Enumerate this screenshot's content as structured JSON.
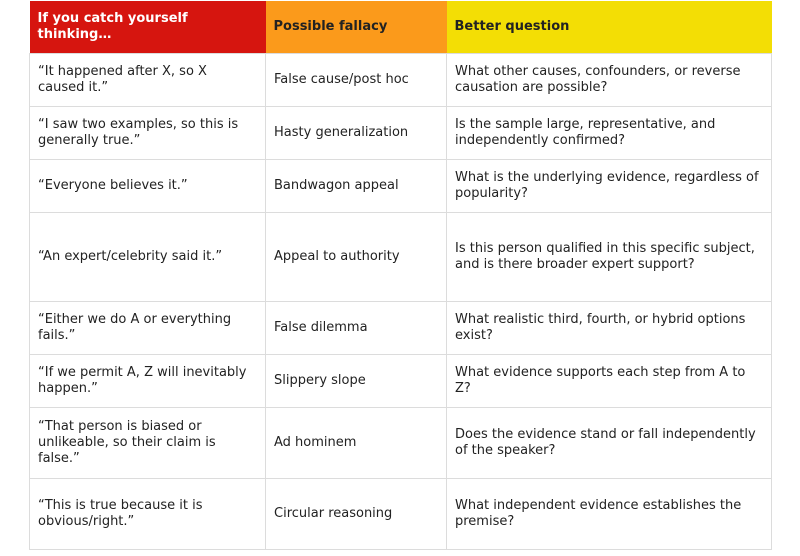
{
  "colors": {
    "header_col1": "#d6150f",
    "header_col2": "#fb9a1b",
    "header_col3": "#f3de05",
    "border": "#dcdcdc",
    "text": "#222222"
  },
  "table": {
    "headers": [
      "If you catch yourself thinking…",
      "Possible fallacy",
      "Better question"
    ],
    "rows": [
      {
        "thought": "“It happened after X, so X caused it.”",
        "fallacy": "False cause/post hoc",
        "question": "What other causes, confounders, or reverse causation are possible?"
      },
      {
        "thought": "“I saw two examples, so this is generally true.”",
        "fallacy": "Hasty generalization",
        "question": "Is the sample large, representative, and independently confirmed?"
      },
      {
        "thought": "“Everyone believes it.”",
        "fallacy": "Bandwagon appeal",
        "question": "What is the underlying evidence, regardless of popularity?"
      },
      {
        "thought": "“An expert/celebrity said it.”",
        "fallacy": "Appeal to authority",
        "question": "Is this person qualified in this specific subject, and is there broader expert support?"
      },
      {
        "thought": "“Either we do A or everything fails.”",
        "fallacy": "False dilemma",
        "question": "What realistic third, fourth, or hybrid options exist?"
      },
      {
        "thought": "“If we permit A, Z will inevitably happen.”",
        "fallacy": "Slippery slope",
        "question": "What evidence supports each step from A to Z?"
      },
      {
        "thought": "“That person is biased or unlikeable, so their claim is false.”",
        "fallacy": "Ad hominem",
        "question": "Does the evidence stand or fall independently of the speaker?"
      },
      {
        "thought": "“This is true because it is obvious/right.”",
        "fallacy": "Circular reasoning",
        "question": "What independent evidence establishes the premise?"
      }
    ]
  }
}
